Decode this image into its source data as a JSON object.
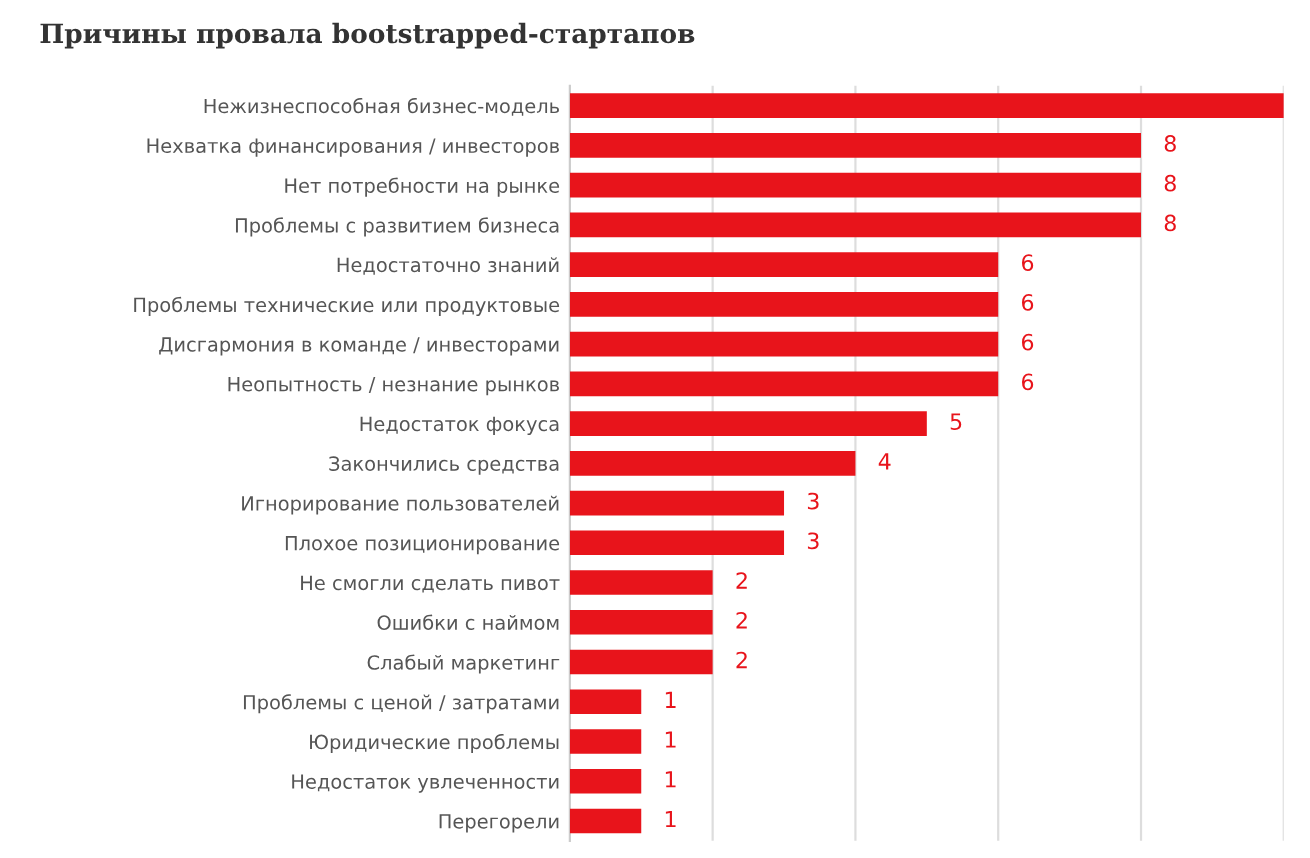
{
  "chart_data": {
    "type": "bar",
    "orientation": "horizontal",
    "title": "Причины провала bootstrapped-стартапов",
    "categories": [
      "Нежизнеспособная бизнес-модель",
      "Нехватка финансирования / инвесторов",
      "Нет потребности на рынке",
      "Проблемы с развитием бизнеса",
      "Недостаточно знаний",
      "Проблемы технические или продуктовые",
      "Дисгармония в команде / инвесторами",
      "Неопытность / незнание рынков",
      "Недостаток фокуса",
      "Закончились средства",
      "Игнорирование пользователей",
      "Плохое позиционирование",
      "Не смогли сделать пивот",
      "Ошибки с наймом",
      "Слабый маркетинг",
      "Проблемы с ценой / затратами",
      "Юридические проблемы",
      "Недостаток увлеченности",
      "Перегорели"
    ],
    "values": [
      10,
      8,
      8,
      8,
      6,
      6,
      6,
      6,
      5,
      4,
      3,
      3,
      2,
      2,
      2,
      1,
      1,
      1,
      1
    ],
    "value_labels": [
      null,
      "8",
      "8",
      "8",
      "6",
      "6",
      "6",
      "6",
      "5",
      "4",
      "3",
      "3",
      "2",
      "2",
      "2",
      "1",
      "1",
      "1",
      "1"
    ],
    "color": "#e8141b",
    "xlim": [
      0,
      10
    ],
    "xticks": [
      {
        "value": 2,
        "label": null
      },
      {
        "value": 4,
        "label": null
      },
      {
        "value": 6,
        "label": null
      },
      {
        "value": 8,
        "label": null
      },
      {
        "value": 10,
        "label": null
      }
    ],
    "grid": "x"
  }
}
